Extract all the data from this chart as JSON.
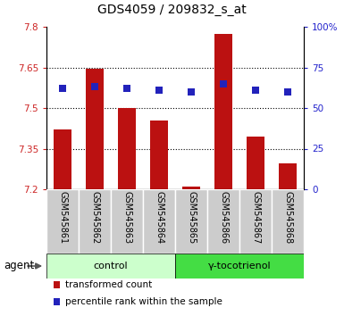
{
  "title": "GDS4059 / 209832_s_at",
  "samples": [
    "GSM545861",
    "GSM545862",
    "GSM545863",
    "GSM545864",
    "GSM545865",
    "GSM545866",
    "GSM545867",
    "GSM545868"
  ],
  "transformed_count": [
    7.42,
    7.645,
    7.5,
    7.455,
    7.21,
    7.775,
    7.395,
    7.295
  ],
  "percentile_rank": [
    62,
    63,
    62,
    61,
    60,
    65,
    61,
    60
  ],
  "ylim_left": [
    7.2,
    7.8
  ],
  "ylim_right": [
    0,
    100
  ],
  "yticks_left": [
    7.2,
    7.35,
    7.5,
    7.65,
    7.8
  ],
  "yticks_right": [
    0,
    25,
    50,
    75,
    100
  ],
  "ytick_labels_left": [
    "7.2",
    "7.35",
    "7.5",
    "7.65",
    "7.8"
  ],
  "ytick_labels_right": [
    "0",
    "25",
    "50",
    "75",
    "100%"
  ],
  "bar_color": "#bb1111",
  "dot_color": "#2222bb",
  "bar_bottom": 7.2,
  "groups": [
    {
      "label": "control",
      "indices": [
        0,
        1,
        2,
        3
      ],
      "light_color": "#d4f5d4",
      "dark_color": "#66ee66"
    },
    {
      "label": "γ-tocotrienol",
      "indices": [
        4,
        5,
        6,
        7
      ],
      "light_color": "#66ee66",
      "dark_color": "#22cc22"
    }
  ],
  "agent_label": "agent",
  "legend_items": [
    {
      "color": "#bb1111",
      "label": "transformed count"
    },
    {
      "color": "#2222bb",
      "label": "percentile rank within the sample"
    }
  ],
  "bar_width": 0.55,
  "dot_size": 35,
  "plot_bg": "#ffffff",
  "label_bg": "#cccccc"
}
